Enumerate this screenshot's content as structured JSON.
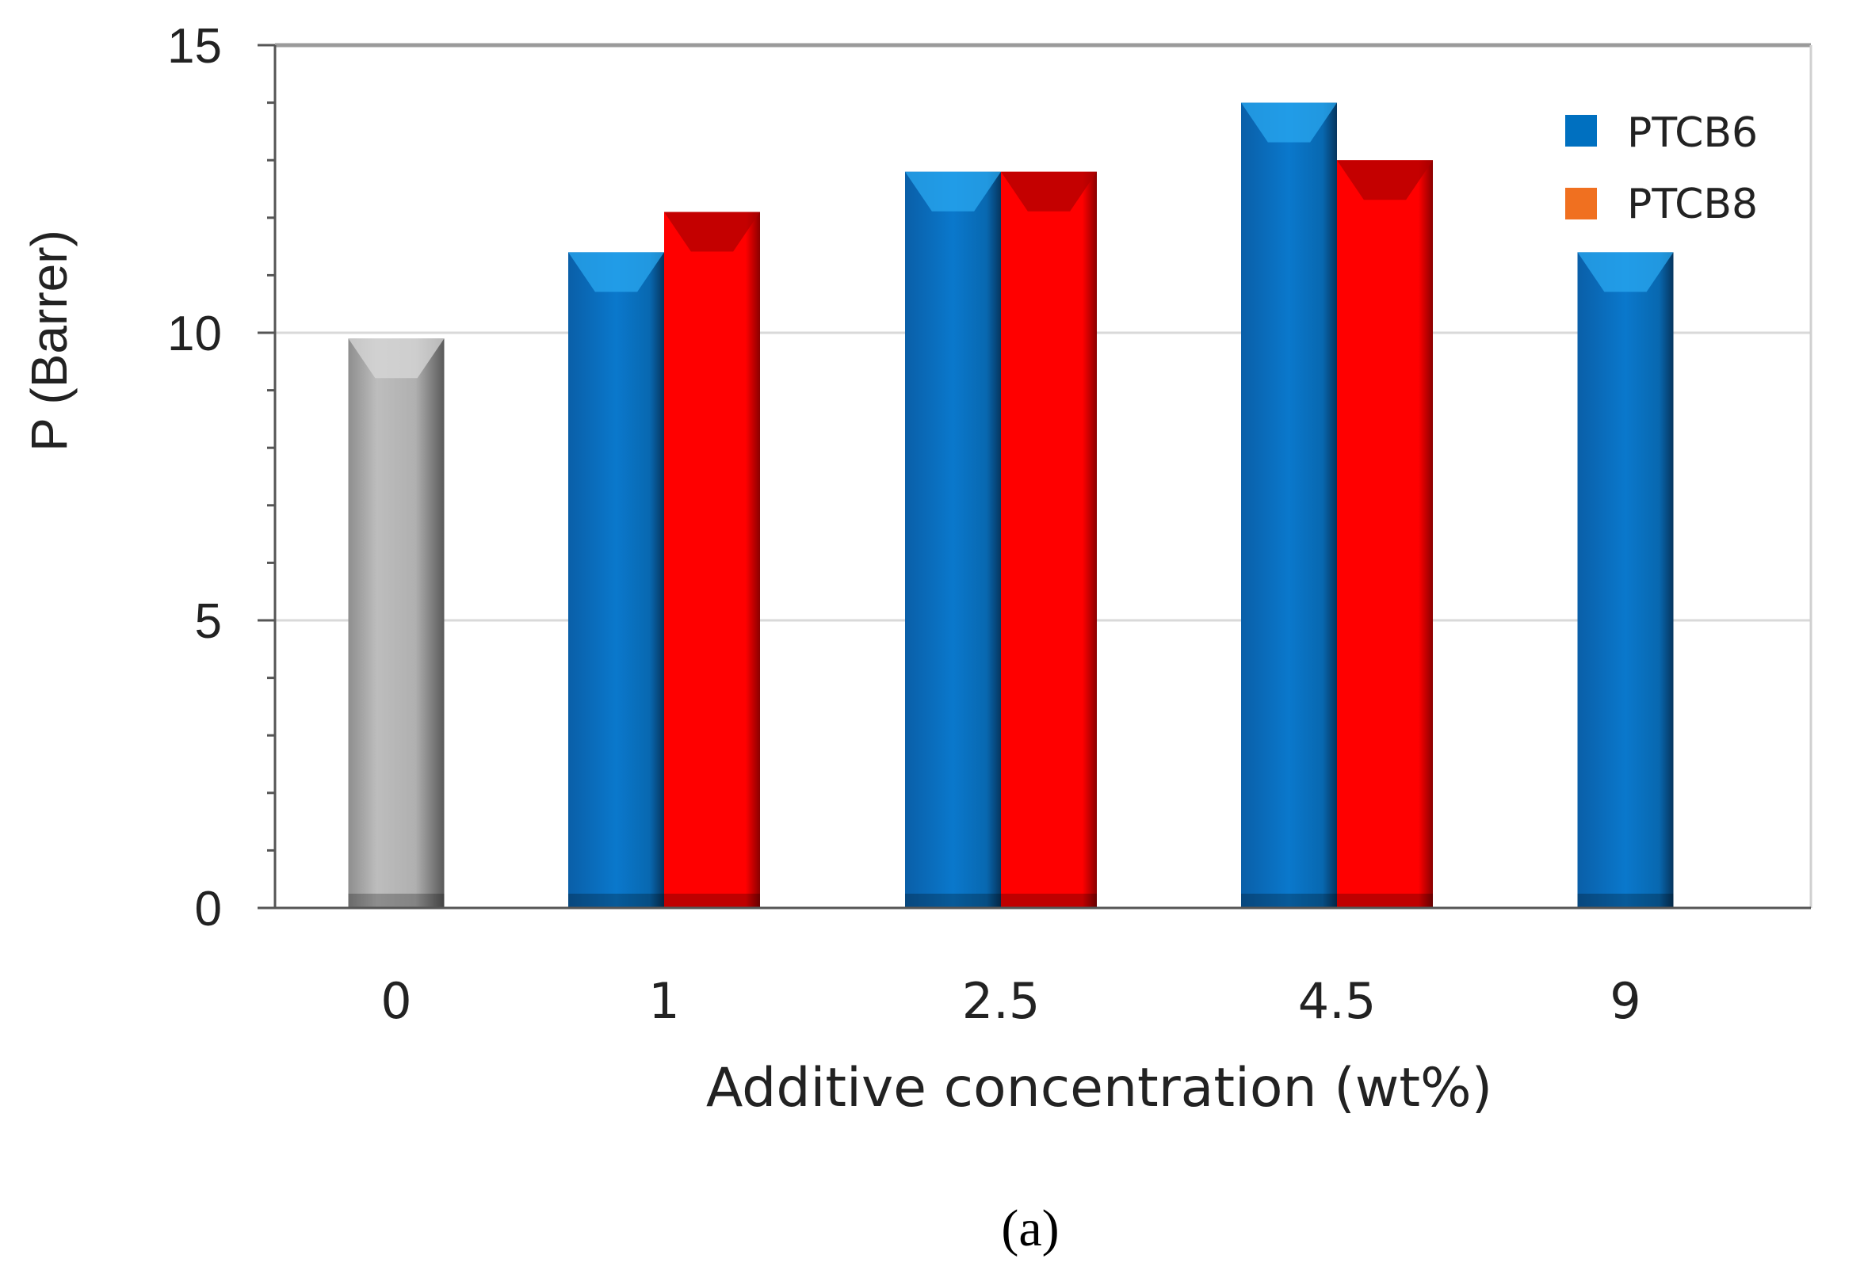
{
  "chart_data": {
    "type": "bar",
    "categories": [
      "0",
      "1",
      "2.5",
      "4.5",
      "9"
    ],
    "series": [
      {
        "name": "",
        "values": [
          9.9,
          null,
          null,
          null,
          null
        ],
        "color": "#a6a6a6"
      },
      {
        "name": "PTCB6",
        "values": [
          null,
          11.4,
          12.8,
          14.0,
          11.4
        ],
        "color": "#0070c0"
      },
      {
        "name": "PTCB8",
        "values": [
          null,
          12.1,
          12.8,
          13.0,
          null
        ],
        "color": "#ff0000"
      }
    ],
    "legend": {
      "entries": [
        "PTCB6",
        "PTCB8"
      ],
      "marker_colors": [
        "#0070c0",
        "#f07020"
      ],
      "placement": "top-right"
    },
    "xlabel": "Additive concentration (wt%)",
    "ylabel": "P (Barrer)",
    "ylim": [
      0,
      15
    ],
    "yticks": [
      "0",
      "5",
      "10",
      "15"
    ],
    "grid": true,
    "caption": "(a)"
  }
}
